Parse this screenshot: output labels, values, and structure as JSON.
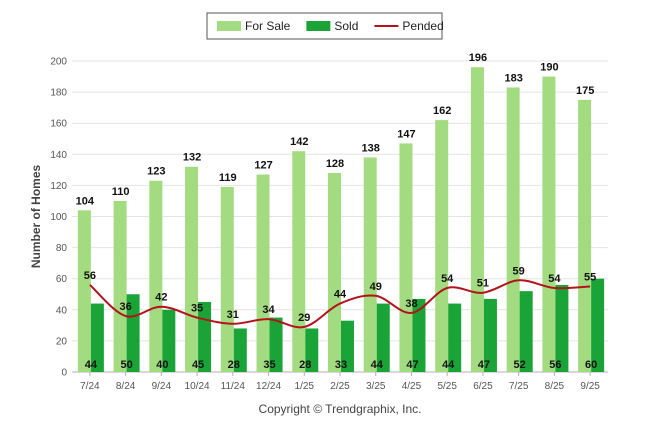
{
  "chart_data": {
    "type": "bar",
    "title": "",
    "xlabel": "",
    "ylabel": "Number of Homes",
    "ylim": [
      0,
      200
    ],
    "yticks": [
      0,
      20,
      40,
      60,
      80,
      100,
      120,
      140,
      160,
      180,
      200
    ],
    "grid": true,
    "legend_position": "top-center",
    "categories": [
      "7/24",
      "8/24",
      "9/24",
      "10/24",
      "11/24",
      "12/24",
      "1/25",
      "2/25",
      "3/25",
      "4/25",
      "5/25",
      "6/25",
      "7/25",
      "8/25",
      "9/25"
    ],
    "series": [
      {
        "name": "For Sale",
        "kind": "bar",
        "color": "#a3dc80",
        "values": [
          104,
          110,
          123,
          132,
          119,
          127,
          142,
          128,
          138,
          147,
          162,
          196,
          183,
          190,
          175
        ]
      },
      {
        "name": "Sold",
        "kind": "bar",
        "color": "#1aa336",
        "values": [
          44,
          50,
          40,
          45,
          28,
          35,
          28,
          33,
          44,
          47,
          44,
          47,
          52,
          56,
          60
        ]
      },
      {
        "name": "Pended",
        "kind": "line",
        "color": "#b3131b",
        "values": [
          56,
          36,
          42,
          35,
          31,
          34,
          29,
          44,
          49,
          38,
          54,
          51,
          59,
          54,
          55
        ]
      }
    ],
    "annotations": [
      "Copyright © Trendgraphix, Inc."
    ]
  }
}
